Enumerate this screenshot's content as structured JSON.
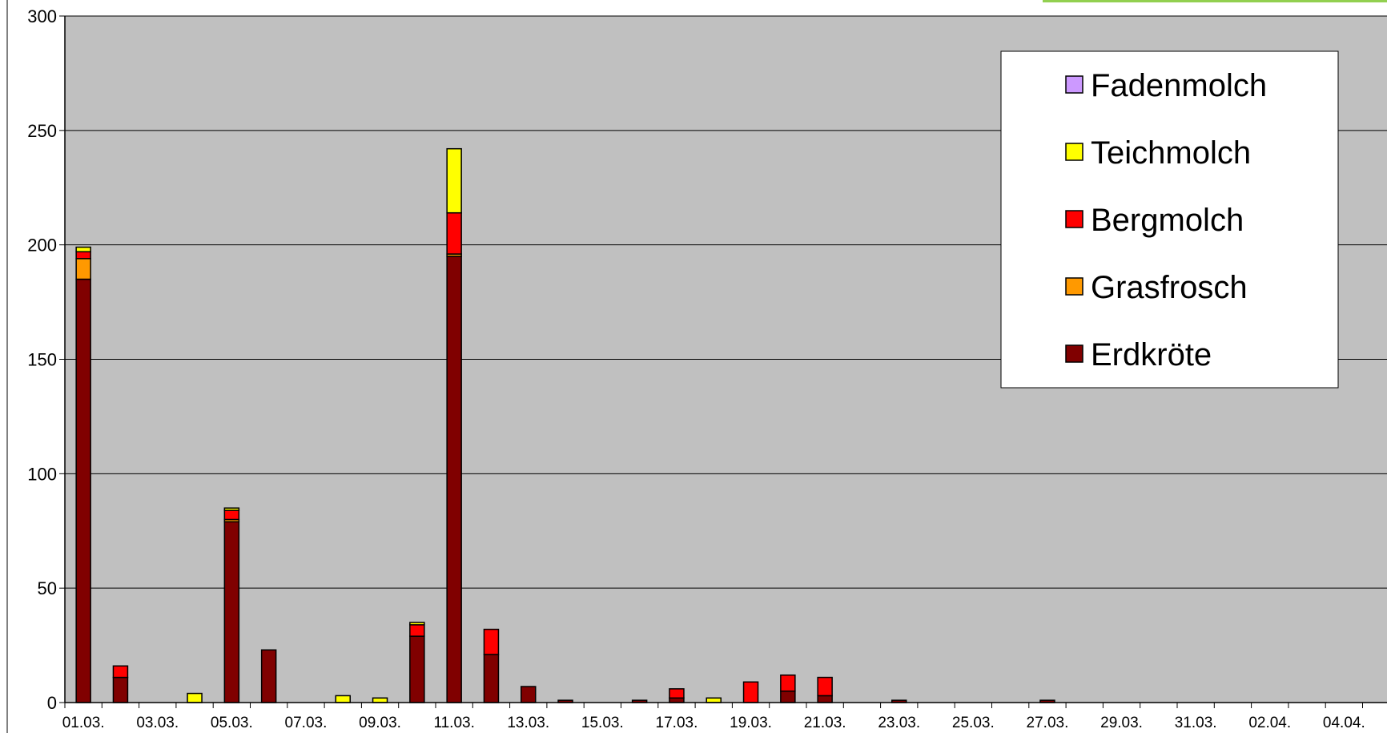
{
  "chart_data": {
    "type": "bar",
    "stacked": true,
    "title": "",
    "xlabel": "",
    "ylabel": "",
    "ylim": [
      0,
      300
    ],
    "yticks": [
      0,
      50,
      100,
      150,
      200,
      250,
      300
    ],
    "grid": true,
    "legend_position": "top-right",
    "categories": [
      "01.03.",
      "02.03.",
      "03.03.",
      "04.03.",
      "05.03.",
      "06.03.",
      "07.03.",
      "08.03.",
      "09.03.",
      "10.03.",
      "11.03.",
      "12.03.",
      "13.03.",
      "14.03.",
      "15.03.",
      "16.03.",
      "17.03.",
      "18.03.",
      "19.03.",
      "20.03.",
      "21.03.",
      "22.03.",
      "23.03.",
      "24.03.",
      "25.03.",
      "26.03.",
      "27.03.",
      "28.03.",
      "29.03.",
      "30.03.",
      "31.03.",
      "01.04.",
      "02.04.",
      "03.04.",
      "04.04.",
      "05.04."
    ],
    "tick_labels": [
      "01.03.",
      "03.03.",
      "05.03.",
      "07.03.",
      "09.03.",
      "11.03.",
      "13.03.",
      "15.03.",
      "17.03.",
      "19.03.",
      "21.03.",
      "23.03.",
      "25.03.",
      "27.03.",
      "29.03.",
      "31.03.",
      "02.04.",
      "04.04."
    ],
    "series": [
      {
        "name": "Erdkröte",
        "color": "#800000",
        "values": [
          185,
          11,
          0,
          0,
          79,
          23,
          0,
          0,
          0,
          29,
          195,
          21,
          7,
          1,
          0,
          1,
          2,
          0,
          0,
          5,
          3,
          0,
          1,
          0,
          0,
          0,
          1,
          0,
          0,
          0,
          0,
          0,
          0,
          0,
          0,
          0
        ]
      },
      {
        "name": "Grasfrosch",
        "color": "#FF9900",
        "values": [
          9,
          0,
          0,
          0,
          1,
          0,
          0,
          0,
          0,
          0,
          1,
          0,
          0,
          0,
          0,
          0,
          0,
          0,
          0,
          0,
          0,
          0,
          0,
          0,
          0,
          0,
          0,
          0,
          0,
          0,
          0,
          0,
          0,
          0,
          0,
          0
        ]
      },
      {
        "name": "Bergmolch",
        "color": "#FF0000",
        "values": [
          3,
          5,
          0,
          0,
          4,
          0,
          0,
          0,
          0,
          5,
          18,
          11,
          0,
          0,
          0,
          0,
          4,
          0,
          9,
          7,
          8,
          0,
          0,
          0,
          0,
          0,
          0,
          0,
          0,
          0,
          0,
          0,
          0,
          0,
          0,
          0
        ]
      },
      {
        "name": "Teichmolch",
        "color": "#FFFF00",
        "values": [
          2,
          0,
          0,
          4,
          1,
          0,
          0,
          3,
          2,
          1,
          28,
          0,
          0,
          0,
          0,
          0,
          0,
          2,
          0,
          0,
          0,
          0,
          0,
          0,
          0,
          0,
          0,
          0,
          0,
          0,
          0,
          0,
          0,
          0,
          0,
          0
        ]
      },
      {
        "name": "Fadenmolch",
        "color": "#CC99FF",
        "values": [
          0,
          0,
          0,
          0,
          0,
          0,
          0,
          0,
          0,
          0,
          0,
          0,
          0,
          0,
          0,
          0,
          0,
          0,
          0,
          0,
          0,
          0,
          0,
          0,
          0,
          0,
          0,
          0,
          0,
          0,
          0,
          0,
          0,
          0,
          0,
          0
        ]
      }
    ],
    "legend_order": [
      "Fadenmolch",
      "Teichmolch",
      "Bergmolch",
      "Grasfrosch",
      "Erdkröte"
    ],
    "plot_background": "#C0C0C0",
    "accent_bar_color": "#92D050"
  }
}
